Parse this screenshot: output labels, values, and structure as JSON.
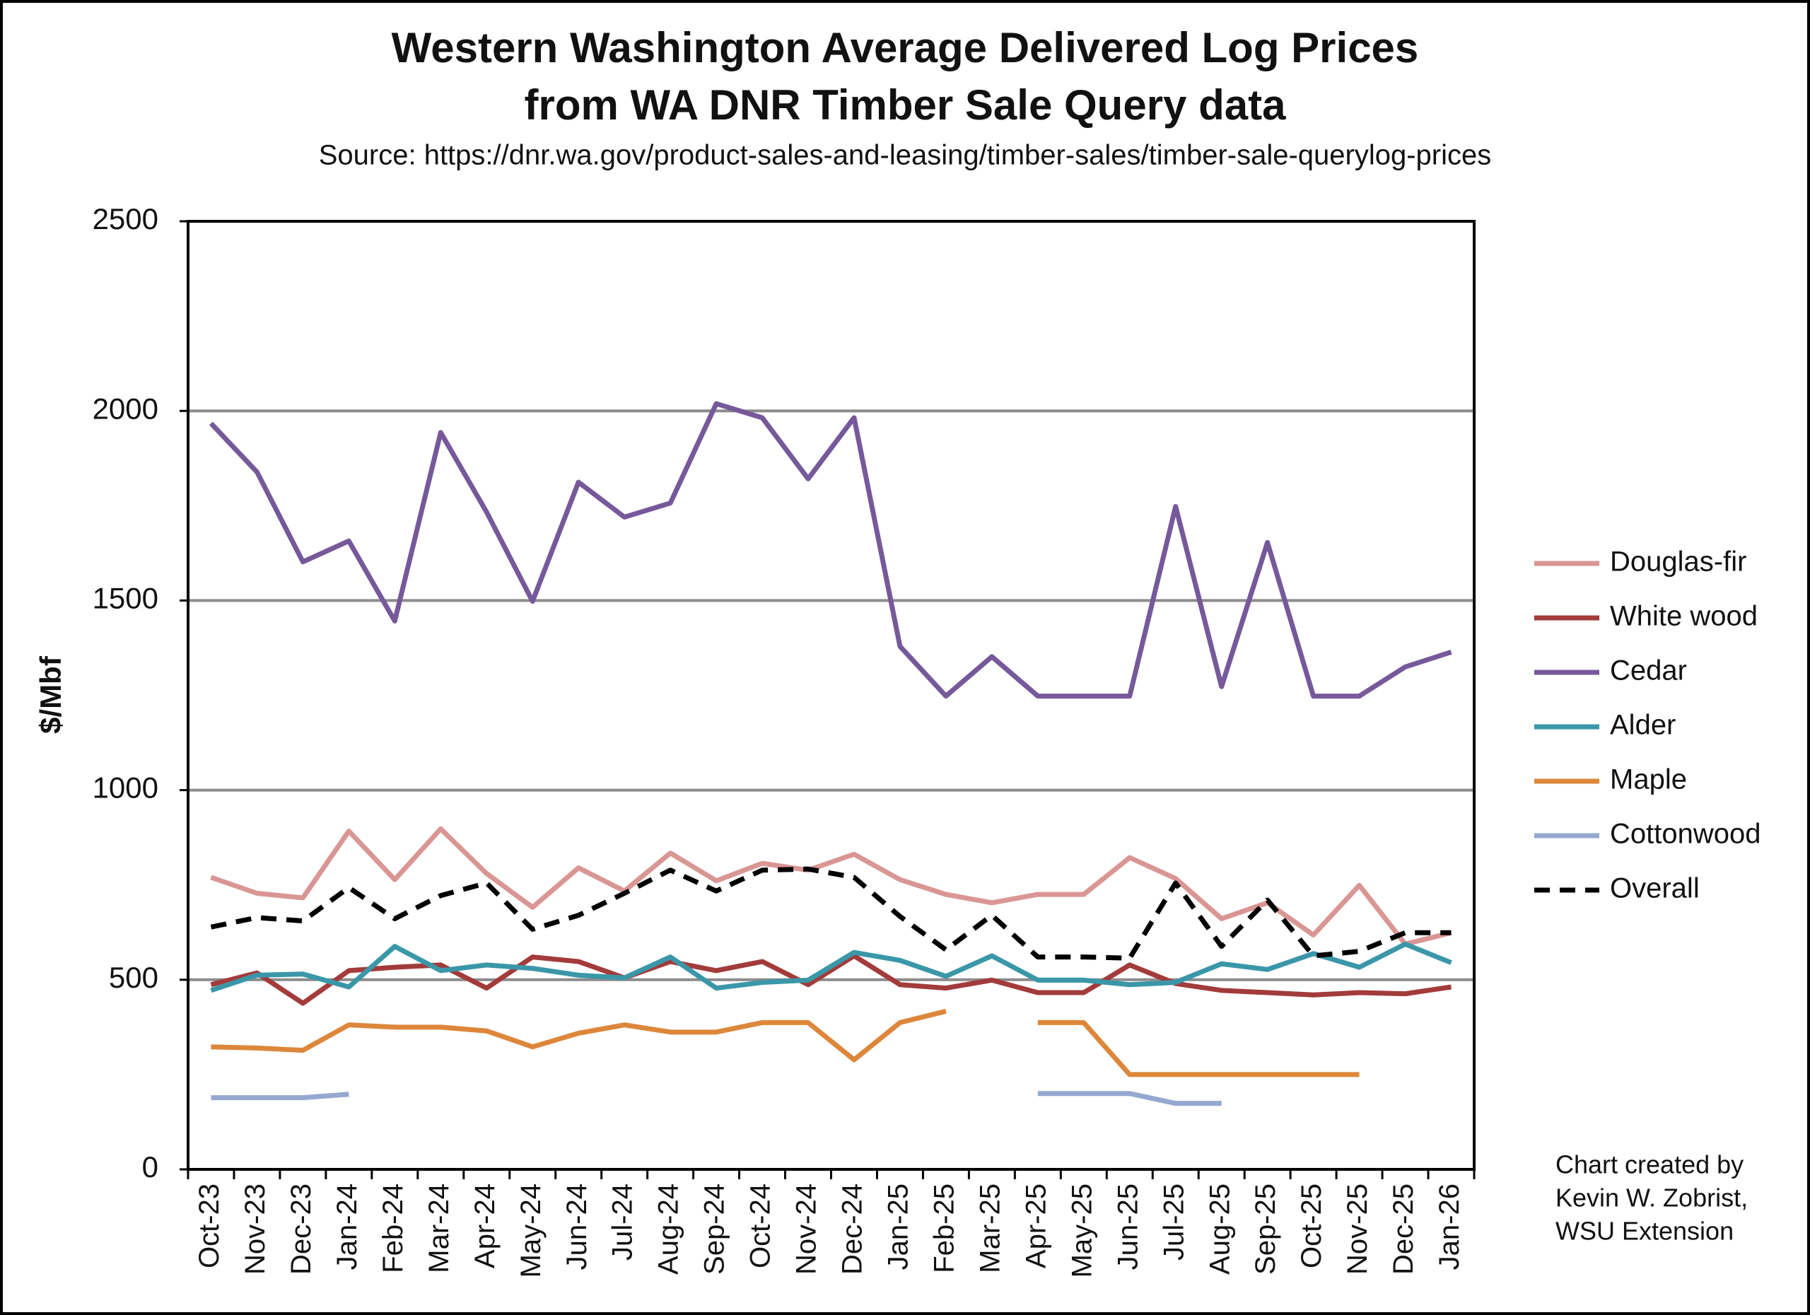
{
  "chart_data": {
    "type": "line",
    "title": [
      "Western Washington Average Delivered Log Prices",
      "from WA DNR Timber Sale Query data"
    ],
    "subtitle": "Source: https://dnr.wa.gov/product-sales-and-leasing/timber-sales/timber-sale-querylog-prices",
    "y_label": "$/Mbf",
    "annotation": [
      "Chart created by",
      "Kevin W. Zobrist,",
      "WSU Extension"
    ],
    "categories": [
      "Oct-23",
      "Nov-23",
      "Dec-23",
      "Jan-24",
      "Feb-24",
      "Mar-24",
      "Apr-24",
      "May-24",
      "Jun-24",
      "Jul-24",
      "Aug-24",
      "Sep-24",
      "Oct-24",
      "Nov-24",
      "Dec-24",
      "Jan-25",
      "Feb-25",
      "Mar-25",
      "Apr-25",
      "May-25",
      "Jun-25",
      "Jul-25",
      "Aug-25",
      "Sep-25",
      "Oct-25",
      "Nov-25",
      "Dec-25",
      "Jan-26"
    ],
    "ylim": [
      0,
      2500
    ],
    "yticks": [
      0,
      500,
      1000,
      1500,
      2000,
      2500
    ],
    "grid": true,
    "legend": "right",
    "series": [
      {
        "name": "Douglas-fir",
        "color": "#d99694",
        "values": [
          770,
          728,
          716,
          892,
          764,
          898,
          780,
          691,
          795,
          734,
          834,
          761,
          807,
          789,
          831,
          764,
          725,
          703,
          725,
          725,
          822,
          767,
          661,
          703,
          618,
          749,
          594,
          624
        ]
      },
      {
        "name": "White wood",
        "color": "#a33b3b",
        "values": [
          487,
          518,
          438,
          524,
          533,
          539,
          478,
          560,
          548,
          505,
          548,
          524,
          548,
          487,
          563,
          487,
          478,
          499,
          466,
          466,
          539,
          490,
          472,
          466,
          460,
          466,
          463,
          481
        ]
      },
      {
        "name": "Cedar",
        "color": "#76599a",
        "values": [
          1967,
          1839,
          1602,
          1657,
          1446,
          1943,
          1733,
          1498,
          1812,
          1720,
          1757,
          2019,
          1982,
          1821,
          1982,
          1379,
          1248,
          1352,
          1248,
          1248,
          1248,
          1748,
          1273,
          1653,
          1248,
          1248,
          1325,
          1364
        ]
      },
      {
        "name": "Alder",
        "color": "#3a97a8",
        "values": [
          472,
          512,
          515,
          481,
          588,
          524,
          539,
          530,
          512,
          505,
          560,
          478,
          493,
          499,
          572,
          551,
          509,
          563,
          499,
          499,
          487,
          493,
          542,
          527,
          569,
          533,
          594,
          545
        ]
      },
      {
        "name": "Maple",
        "color": "#dd873b",
        "values": [
          323,
          320,
          314,
          381,
          375,
          375,
          365,
          323,
          359,
          381,
          362,
          362,
          387,
          387,
          289,
          387,
          417,
          null,
          387,
          387,
          250,
          250,
          250,
          250,
          250,
          250,
          null,
          null
        ]
      },
      {
        "name": "Cottonwood",
        "color": "#95a8cf",
        "values": [
          189,
          189,
          189,
          198,
          null,
          null,
          null,
          null,
          null,
          null,
          null,
          null,
          null,
          null,
          null,
          null,
          null,
          null,
          200,
          200,
          200,
          174,
          174,
          null,
          null,
          null,
          null,
          null
        ]
      },
      {
        "name": "Overall",
        "color": "#000000",
        "dashed": true,
        "values": [
          639,
          664,
          655,
          743,
          661,
          722,
          755,
          633,
          670,
          728,
          789,
          734,
          789,
          792,
          770,
          667,
          579,
          670,
          560,
          560,
          557,
          755,
          588,
          710,
          563,
          575,
          624,
          624
        ]
      }
    ]
  }
}
